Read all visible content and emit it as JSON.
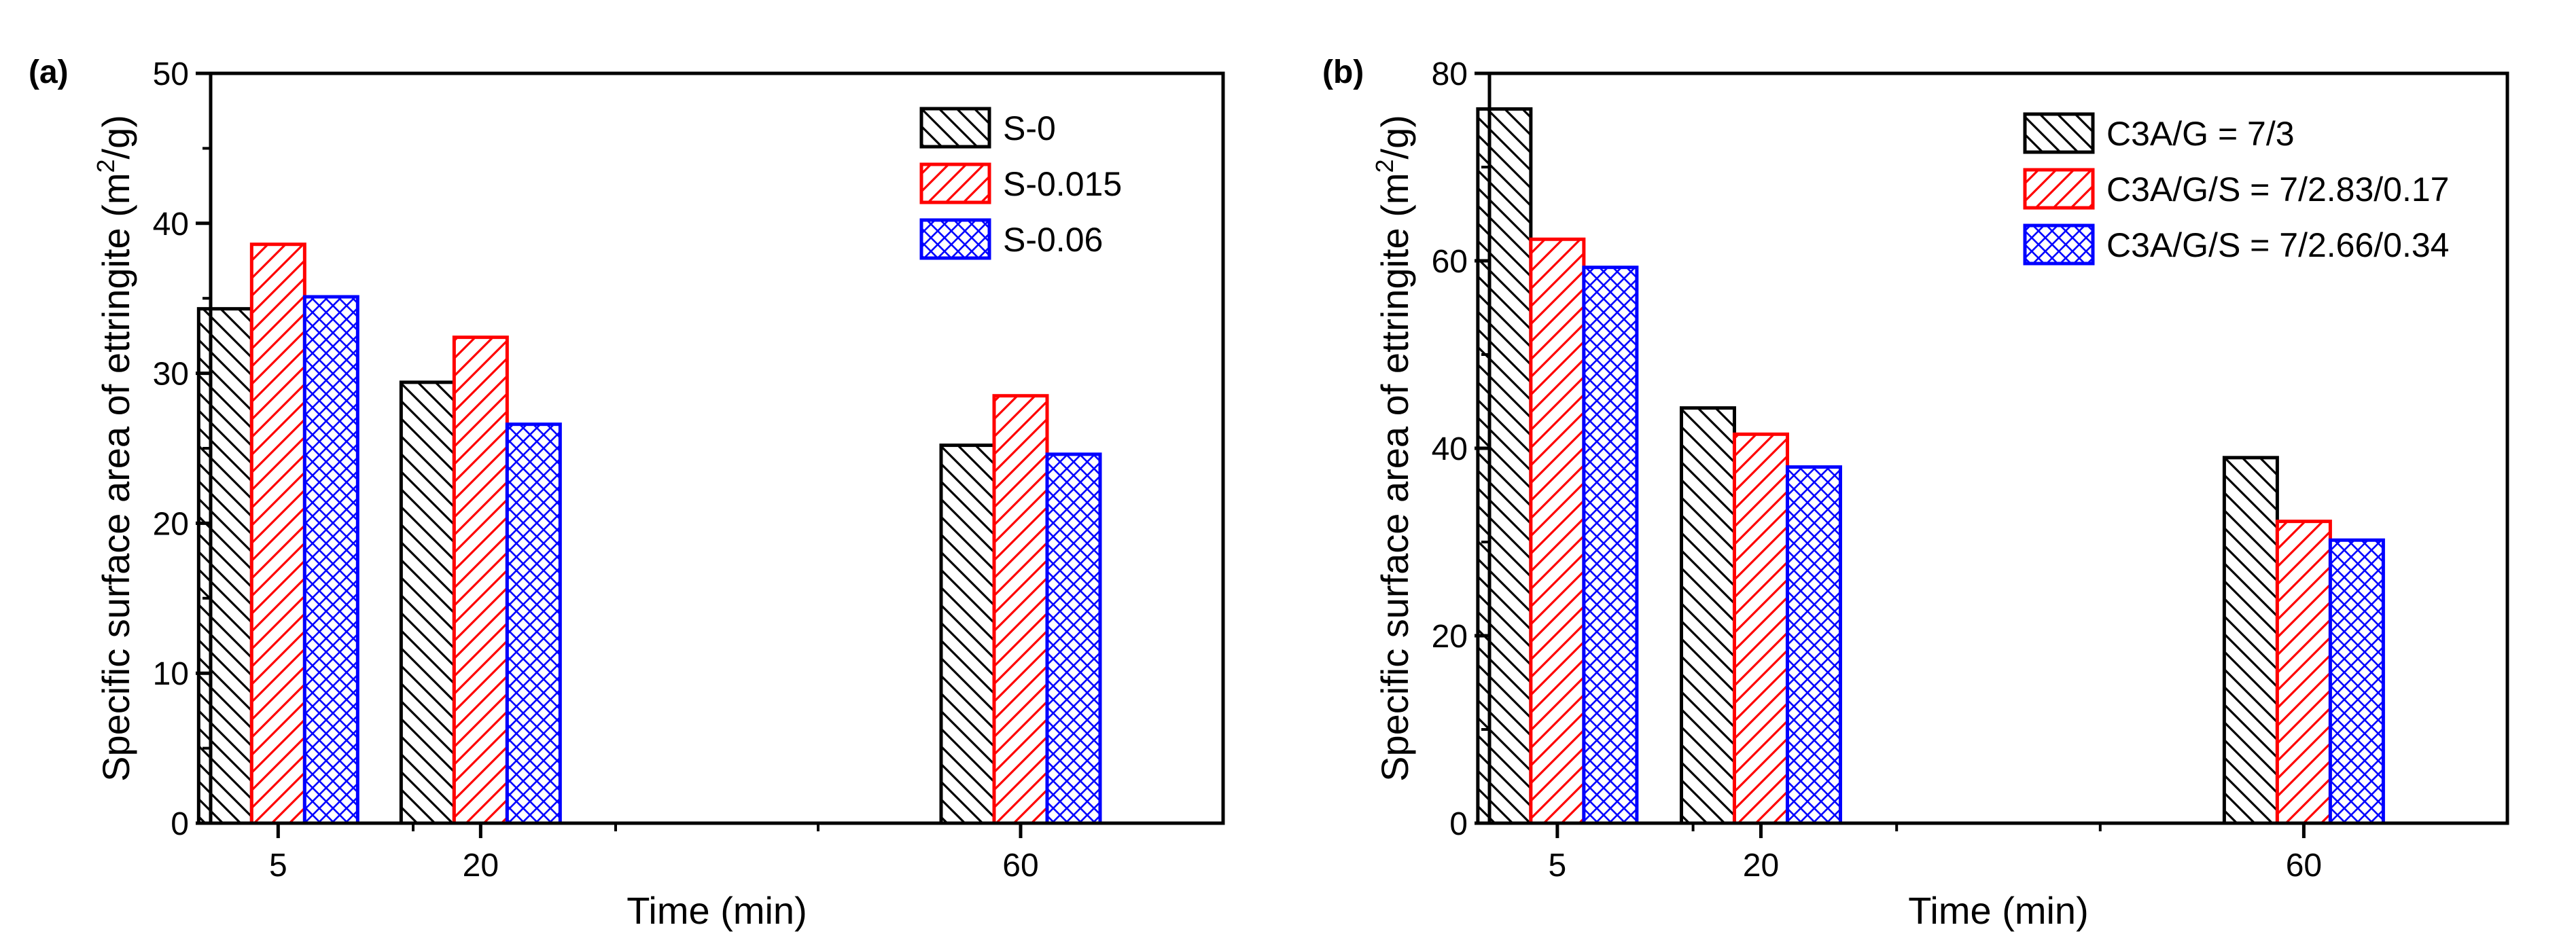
{
  "figure": {
    "panels": [
      "(a)",
      "(b)"
    ]
  },
  "chart_data": [
    {
      "type": "bar",
      "panel_label": "(a)",
      "title": "",
      "xlabel": "Time (min)",
      "ylabel_main": "Specific surface area of ettringite (m",
      "ylabel_sup": "2",
      "ylabel_end": "/g)",
      "categories": [
        "5",
        "20",
        "60"
      ],
      "x": [
        5,
        20,
        60
      ],
      "xlim": [
        0,
        75
      ],
      "xticks_minor": [
        15,
        30,
        45,
        60
      ],
      "ylim": [
        0,
        50
      ],
      "yticks": [
        0,
        10,
        20,
        30,
        40,
        50
      ],
      "legend_position": "top-right",
      "series": [
        {
          "name": "S-0",
          "color": "#000000",
          "pattern": "diag-down",
          "values": [
            34.3,
            29.4,
            25.2
          ]
        },
        {
          "name": "S-0.015",
          "color": "#ff0000",
          "pattern": "diag-up",
          "values": [
            38.6,
            32.4,
            28.5
          ]
        },
        {
          "name": "S-0.06",
          "color": "#0000ff",
          "pattern": "crosshatch",
          "values": [
            35.1,
            26.6,
            24.6
          ]
        }
      ]
    },
    {
      "type": "bar",
      "panel_label": "(b)",
      "title": "",
      "xlabel": "Time (min)",
      "ylabel_main": "Specific surface area of ettringite (m",
      "ylabel_sup": "2",
      "ylabel_end": "/g)",
      "categories": [
        "5",
        "20",
        "60"
      ],
      "x": [
        5,
        20,
        60
      ],
      "xlim": [
        0,
        75
      ],
      "xticks_minor": [
        15,
        30,
        45,
        60
      ],
      "ylim": [
        0,
        80
      ],
      "yticks": [
        0,
        20,
        40,
        60,
        80
      ],
      "legend_position": "top-right",
      "series": [
        {
          "name": "C3A/G = 7/3",
          "color": "#000000",
          "pattern": "diag-down",
          "values": [
            76.2,
            44.3,
            39.0
          ]
        },
        {
          "name": "C3A/G/S = 7/2.83/0.17",
          "color": "#ff0000",
          "pattern": "diag-up",
          "values": [
            62.3,
            41.5,
            32.2
          ]
        },
        {
          "name": "C3A/G/S = 7/2.66/0.34",
          "color": "#0000ff",
          "pattern": "crosshatch",
          "values": [
            59.3,
            38.0,
            30.2
          ]
        }
      ]
    }
  ]
}
